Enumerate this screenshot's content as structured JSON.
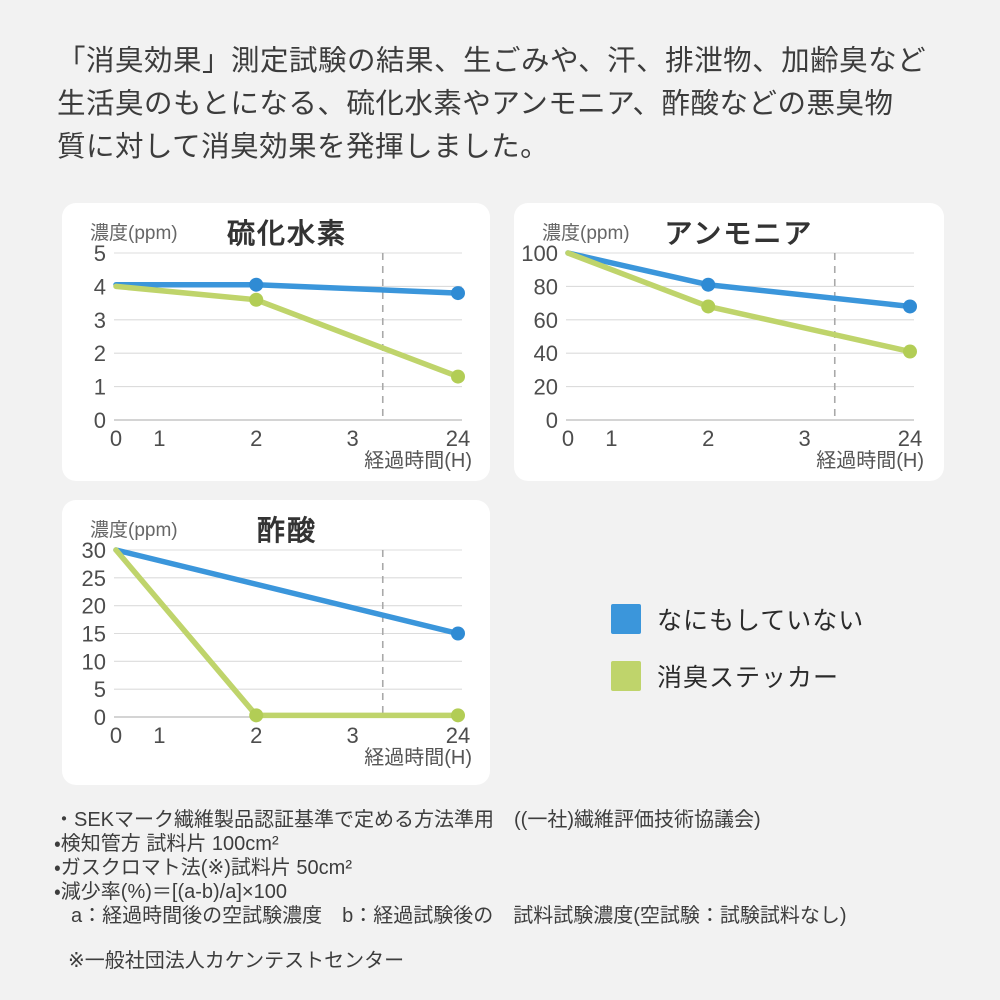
{
  "header": {
    "lines": [
      "「消臭効果」測定試験の結果、生ごみや、汗、排泄物、加齢臭など",
      "生活臭のもとになる、硫化水素やアンモニア、酢酸などの悪臭物",
      "質に対して消臭効果を発揮しました。"
    ]
  },
  "legend": {
    "items": [
      {
        "label": "なにもしていない",
        "color": "#3b96db"
      },
      {
        "label": "消臭ステッカー",
        "color": "#bfd46b"
      }
    ]
  },
  "footer": {
    "lines": [
      "・SEKマーク繊維製品認証基準で定める方法準用　((一社)繊維評価技術協議会)",
      "・検知管方 試料片 100cm²",
      "・ガスクロマト法(※)試料片 50cm²",
      "・減少率(%)＝[(a-b)/a]×100",
      "a：経過時間後の空試験濃度　b：経過試験後の　試料試験濃度(空試験：試験試料なし)"
    ],
    "note": "※一般社団法人カケンテストセンター"
  },
  "chart_data": [
    {
      "type": "line",
      "title": "硫化水素",
      "ylabel": "濃度(ppm)",
      "xlabel": "経過時間(H)",
      "categories": [
        "0",
        "1",
        "2",
        "3",
        "24"
      ],
      "ylim": [
        0,
        5
      ],
      "yticks": [
        0,
        1,
        2,
        3,
        4,
        5
      ],
      "grid": "horizontal",
      "axis_break_between": [
        "3",
        "24"
      ],
      "legend_position": "none",
      "series": [
        {
          "name": "なにもしていない",
          "color": "#3b96db",
          "marker_color": "#2f8bd4",
          "values": [
            4.05,
            null,
            4.05,
            null,
            3.8
          ],
          "markers": [
            false,
            false,
            true,
            false,
            true
          ]
        },
        {
          "name": "消臭ステッカー",
          "color": "#bfd46b",
          "marker_color": "#b2cd55",
          "values": [
            4.0,
            null,
            3.6,
            null,
            1.3
          ],
          "markers": [
            false,
            false,
            true,
            false,
            true
          ]
        }
      ]
    },
    {
      "type": "line",
      "title": "アンモニア",
      "ylabel": "濃度(ppm)",
      "xlabel": "経過時間(H)",
      "categories": [
        "0",
        "1",
        "2",
        "3",
        "24"
      ],
      "ylim": [
        0,
        100
      ],
      "yticks": [
        0,
        20,
        40,
        60,
        80,
        100
      ],
      "grid": "horizontal",
      "axis_break_between": [
        "3",
        "24"
      ],
      "legend_position": "none",
      "series": [
        {
          "name": "なにもしていない",
          "color": "#3b96db",
          "marker_color": "#2f8bd4",
          "values": [
            100,
            null,
            81,
            null,
            68
          ],
          "markers": [
            false,
            false,
            true,
            false,
            true
          ]
        },
        {
          "name": "消臭ステッカー",
          "color": "#bfd46b",
          "marker_color": "#b2cd55",
          "values": [
            100,
            null,
            68,
            null,
            41
          ],
          "markers": [
            false,
            false,
            true,
            false,
            true
          ]
        }
      ]
    },
    {
      "type": "line",
      "title": "酢酸",
      "ylabel": "濃度(ppm)",
      "xlabel": "経過時間(H)",
      "categories": [
        "0",
        "1",
        "2",
        "3",
        "24"
      ],
      "ylim": [
        0,
        30
      ],
      "yticks": [
        0,
        5,
        10,
        15,
        20,
        25,
        30
      ],
      "grid": "horizontal",
      "axis_break_between": [
        "3",
        "24"
      ],
      "legend_position": "none",
      "series": [
        {
          "name": "なにもしていない",
          "color": "#3b96db",
          "marker_color": "#2f8bd4",
          "values": [
            30,
            null,
            null,
            null,
            15
          ],
          "markers": [
            false,
            false,
            false,
            false,
            true
          ]
        },
        {
          "name": "消臭ステッカー",
          "color": "#bfd46b",
          "marker_color": "#b2cd55",
          "values": [
            30,
            null,
            0.3,
            null,
            0.3
          ],
          "markers": [
            false,
            false,
            true,
            false,
            true
          ]
        }
      ]
    }
  ]
}
